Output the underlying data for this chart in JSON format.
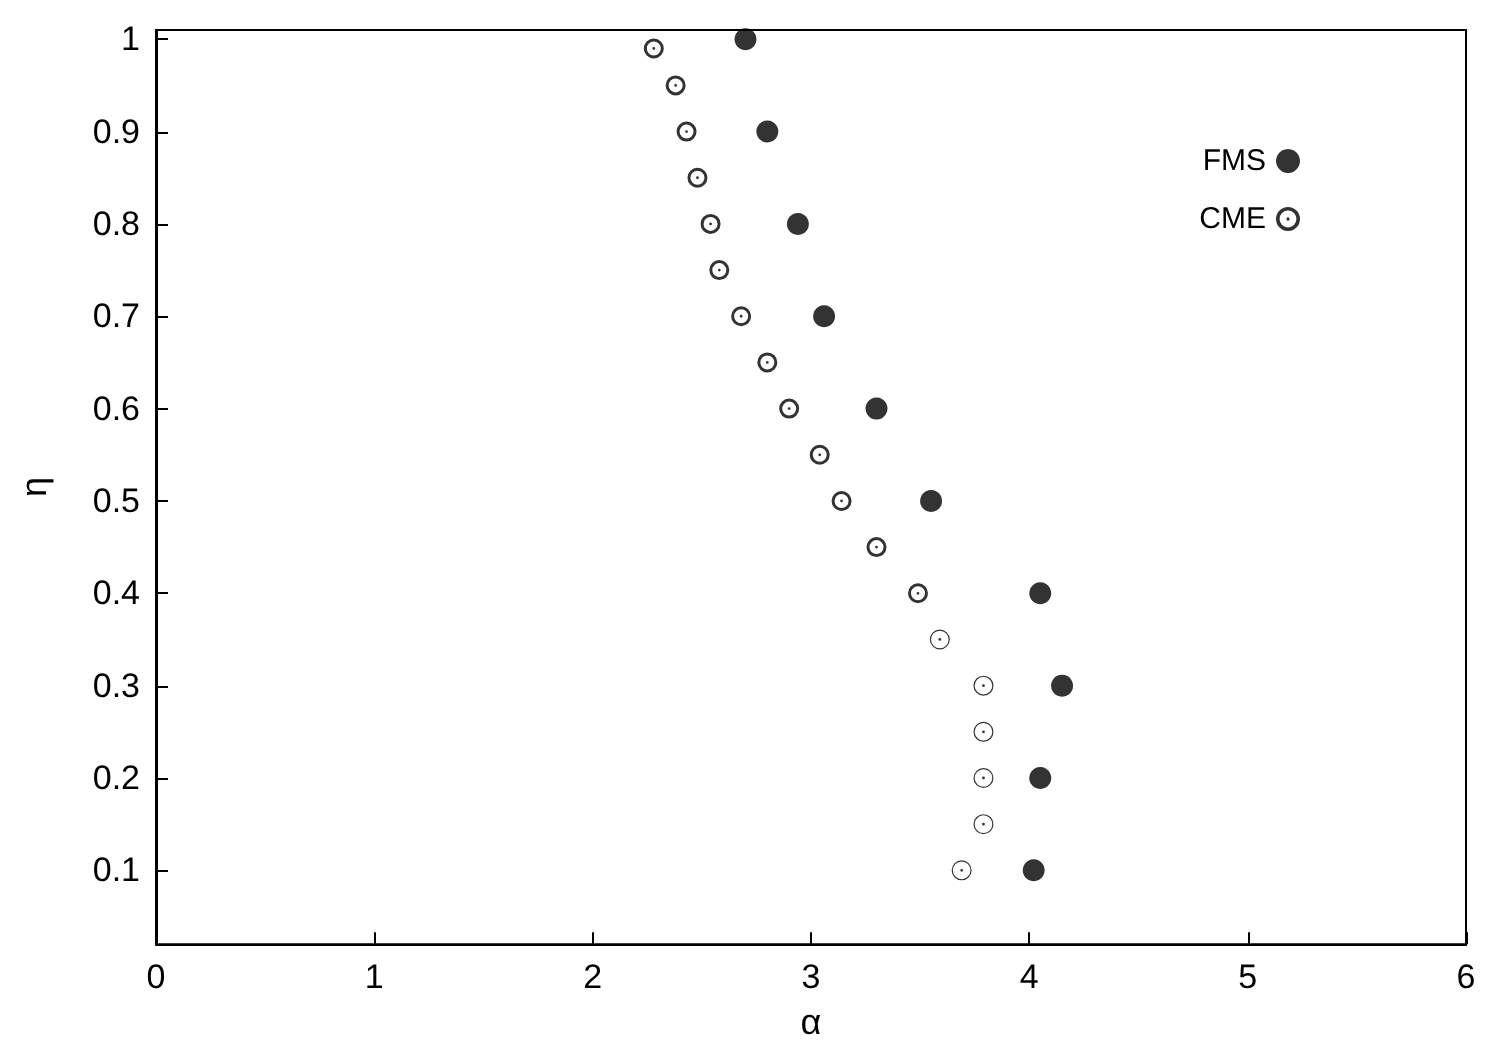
{
  "chart_data": {
    "type": "scatter",
    "xlabel": "α",
    "ylabel": "η",
    "xlim": [
      0,
      6
    ],
    "xticks": [
      0,
      1,
      2,
      3,
      4,
      5,
      6
    ],
    "ylim": [
      0.02,
      1.01
    ],
    "yticks": [
      0.1,
      0.2,
      0.3,
      0.4,
      0.5,
      0.6,
      0.7,
      0.8,
      0.9,
      1
    ],
    "grid": false,
    "legend": "top right",
    "marker": "circle",
    "series": [
      {
        "name": "FMS",
        "color": "#000000",
        "x": [
          2.7,
          2.8,
          2.94,
          3.06,
          3.3,
          3.55,
          4.05,
          4.15,
          4.05,
          4.02
        ],
        "values": [
          1,
          0.9,
          0.8,
          0.7,
          0.6,
          0.5,
          0.4,
          0.3,
          0.2,
          0.1
        ]
      },
      {
        "name": "CME",
        "color": "#000000",
        "x": [
          2.28,
          2.38,
          2.43,
          2.48,
          2.54,
          2.58,
          2.68,
          2.8,
          2.9,
          3.04,
          3.14,
          3.3,
          3.49
        ],
        "values": [
          0.99,
          0.95,
          0.9,
          0.85,
          0.8,
          0.75,
          0.7,
          0.65,
          0.6,
          0.55,
          0.5,
          0.45,
          0.4
        ]
      },
      {
        "color": "#000000",
        "x": [
          3.59,
          3.79,
          3.79,
          3.79,
          3.79,
          3.69
        ],
        "values": [
          0.35,
          0.3,
          0.25,
          0.2,
          0.15,
          0.1
        ]
      }
    ]
  }
}
